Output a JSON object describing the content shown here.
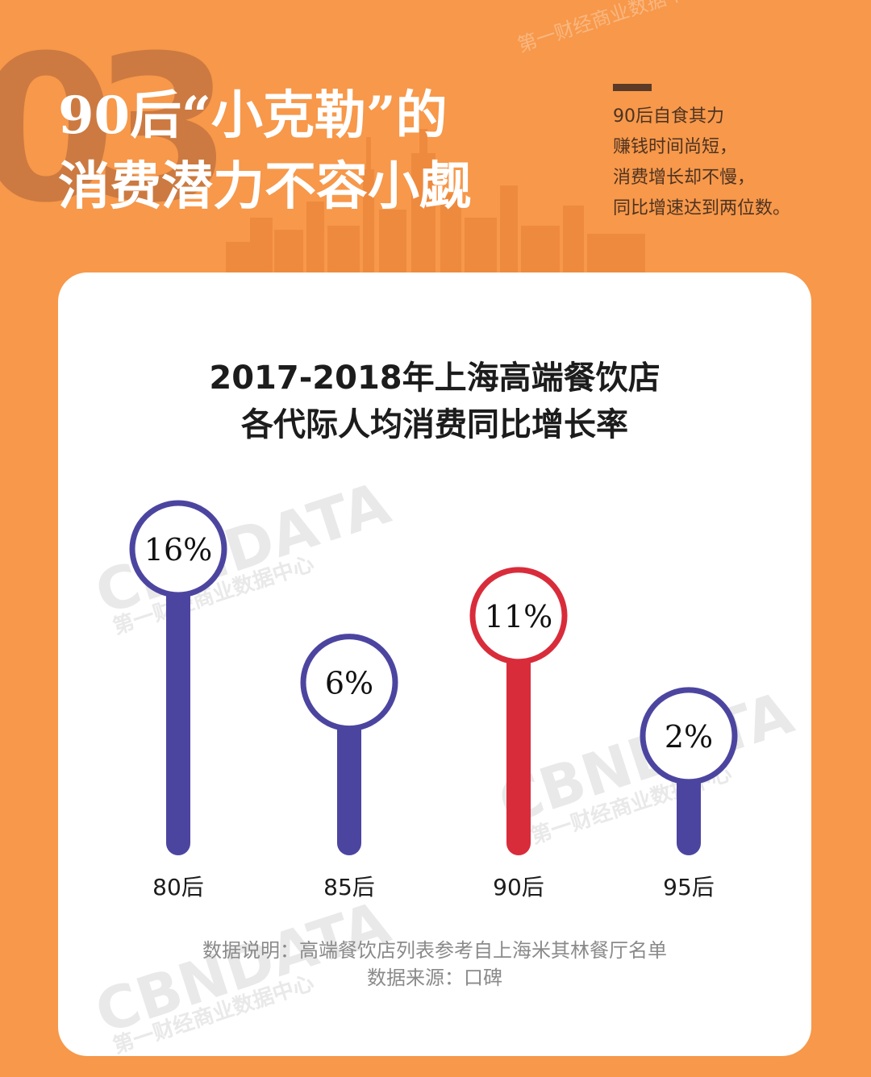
{
  "header": {
    "section_number": "03",
    "headline_line1": "90后“小克勒”的",
    "headline_line2": "消费潜力不容小觑",
    "side_note": [
      "90后自食其力",
      "赚钱时间尚短，",
      "消费增长却不慢，",
      "同比增速达到两位数。"
    ]
  },
  "watermark": {
    "brand": "CBNDATA",
    "tagline": "第一财经商业数据中心"
  },
  "colors": {
    "background": "#f7984a",
    "highlight": "#d92c3b",
    "normal": "#4c45a0"
  },
  "chart_data": {
    "type": "bar",
    "title_line1": "2017-2018年上海高端餐饮店",
    "title_line2": "各代际人均消费同比增长率",
    "categories": [
      "80后",
      "85后",
      "90后",
      "95后"
    ],
    "values": [
      16,
      6,
      11,
      2
    ],
    "labels": [
      "16%",
      "6%",
      "11%",
      "2%"
    ],
    "highlight_category": "90后",
    "unit": "%"
  },
  "footer": {
    "note": "数据说明：高端餐饮店列表参考自上海米其林餐厅名单",
    "source": "数据来源：口碑"
  }
}
